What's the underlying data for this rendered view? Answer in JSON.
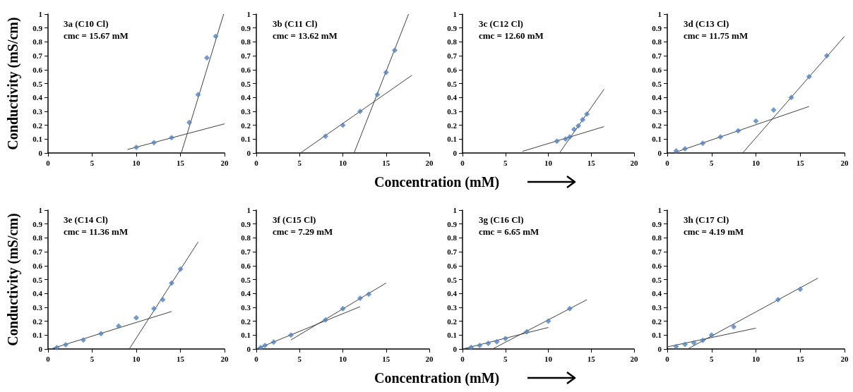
{
  "chart_data": [
    {
      "type": "scatter",
      "title": "3a (C10 Cl)",
      "subtitle": "cmc = 15.67 mM",
      "ylabel": "Conductivity (mS/cm)",
      "xlim": [
        0,
        20
      ],
      "xticks": [
        0,
        5,
        10,
        15,
        20
      ],
      "ylim": [
        0,
        1
      ],
      "yticks": [
        0,
        0.1,
        0.2,
        0.3,
        0.4,
        0.5,
        0.6,
        0.7,
        0.8,
        0.9,
        1
      ],
      "grid": false,
      "marker": "diamond",
      "series": [
        {
          "color": "#4f81bd",
          "x": [
            10,
            12,
            14,
            16,
            17,
            18,
            19
          ],
          "values": [
            0.04,
            0.075,
            0.11,
            0.22,
            0.42,
            0.685,
            0.84
          ]
        },
        {
          "type": "line",
          "marker": "none",
          "color": "#404040",
          "x": [
            9,
            20
          ],
          "values": [
            0.025,
            0.21
          ]
        },
        {
          "type": "line",
          "marker": "none",
          "color": "#404040",
          "x": [
            15.1,
            19.9
          ],
          "values": [
            0,
            1
          ]
        }
      ]
    },
    {
      "type": "scatter",
      "title": "3b (C11 Cl)",
      "subtitle": "cmc = 13.62 mM",
      "xlabel": "Concentration (mM)",
      "xlim": [
        0,
        20
      ],
      "xticks": [
        0,
        5,
        10,
        15,
        20
      ],
      "ylim": [
        0,
        1
      ],
      "yticks": [
        0,
        0.1,
        0.2,
        0.3,
        0.4,
        0.5,
        0.6,
        0.7,
        0.8,
        0.9,
        1
      ],
      "grid": false,
      "marker": "diamond",
      "series": [
        {
          "color": "#4f81bd",
          "x": [
            8,
            10,
            12,
            14,
            15,
            16
          ],
          "values": [
            0.12,
            0.2,
            0.3,
            0.42,
            0.58,
            0.74
          ]
        },
        {
          "type": "line",
          "marker": "none",
          "color": "#404040",
          "x": [
            5.1,
            18
          ],
          "values": [
            0,
            0.56
          ]
        },
        {
          "type": "line",
          "marker": "none",
          "color": "#404040",
          "x": [
            11.3,
            17.6
          ],
          "values": [
            0,
            1
          ]
        }
      ]
    },
    {
      "type": "scatter",
      "title": "3c (C12 Cl)",
      "subtitle": "cmc = 12.60 mM",
      "xlim": [
        0,
        20
      ],
      "xticks": [
        0,
        5,
        10,
        15,
        20
      ],
      "ylim": [
        0,
        1
      ],
      "yticks": [
        0,
        0.1,
        0.2,
        0.3,
        0.4,
        0.5,
        0.6,
        0.7,
        0.8,
        0.9,
        1
      ],
      "grid": false,
      "marker": "diamond",
      "series": [
        {
          "color": "#4f81bd",
          "x": [
            11,
            12,
            12.5,
            13,
            13.5,
            14,
            14.5
          ],
          "values": [
            0.085,
            0.1,
            0.115,
            0.17,
            0.195,
            0.24,
            0.28
          ]
        },
        {
          "type": "line",
          "marker": "none",
          "color": "#404040",
          "x": [
            7,
            16.5
          ],
          "values": [
            0.012,
            0.19
          ]
        },
        {
          "type": "line",
          "marker": "none",
          "color": "#404040",
          "x": [
            11.3,
            16.5
          ],
          "values": [
            0,
            0.46
          ]
        }
      ]
    },
    {
      "type": "scatter",
      "title": "3d (C13 Cl)",
      "subtitle": "cmc = 11.75 mM",
      "xlim": [
        0,
        20
      ],
      "xticks": [
        0,
        5,
        10,
        15,
        20
      ],
      "ylim": [
        0,
        1
      ],
      "yticks": [
        0,
        0.1,
        0.2,
        0.3,
        0.4,
        0.5,
        0.6,
        0.7,
        0.8,
        0.9,
        1
      ],
      "grid": false,
      "marker": "diamond",
      "series": [
        {
          "color": "#4f81bd",
          "x": [
            1,
            2,
            4,
            6,
            8,
            10,
            12,
            14,
            16,
            18
          ],
          "values": [
            0.015,
            0.03,
            0.07,
            0.115,
            0.16,
            0.23,
            0.31,
            0.4,
            0.55,
            0.7
          ]
        },
        {
          "type": "line",
          "marker": "none",
          "color": "#404040",
          "x": [
            0.7,
            16
          ],
          "values": [
            0,
            0.335
          ]
        },
        {
          "type": "line",
          "marker": "none",
          "color": "#404040",
          "x": [
            8.5,
            20
          ],
          "values": [
            0,
            0.84
          ]
        }
      ]
    },
    {
      "type": "scatter",
      "title": "3e (C14 Cl)",
      "subtitle": "cmc = 11.36 mM",
      "ylabel": "Conductivity (mS/cm)",
      "xlim": [
        0,
        20
      ],
      "xticks": [
        0,
        5,
        10,
        15,
        20
      ],
      "ylim": [
        0,
        1
      ],
      "yticks": [
        0,
        0.1,
        0.2,
        0.3,
        0.4,
        0.5,
        0.6,
        0.7,
        0.8,
        0.9,
        1
      ],
      "grid": false,
      "marker": "diamond",
      "series": [
        {
          "color": "#4f81bd",
          "x": [
            1,
            2,
            4,
            6,
            8,
            10,
            12,
            13,
            14,
            15
          ],
          "values": [
            0.01,
            0.03,
            0.065,
            0.11,
            0.165,
            0.225,
            0.29,
            0.355,
            0.475,
            0.575
          ]
        },
        {
          "type": "line",
          "marker": "none",
          "color": "#404040",
          "x": [
            0.3,
            14
          ],
          "values": [
            0,
            0.27
          ]
        },
        {
          "type": "line",
          "marker": "none",
          "color": "#404040",
          "x": [
            9.2,
            17
          ],
          "values": [
            0,
            0.77
          ]
        }
      ]
    },
    {
      "type": "scatter",
      "title": "3f (C15 Cl)",
      "subtitle": "cmc = 7.29 mM",
      "xlabel": "Concentration (mM)",
      "xlim": [
        0,
        20
      ],
      "xticks": [
        0,
        5,
        10,
        15,
        20
      ],
      "ylim": [
        0,
        1
      ],
      "yticks": [
        0,
        0.1,
        0.2,
        0.3,
        0.4,
        0.5,
        0.6,
        0.7,
        0.8,
        0.9,
        1
      ],
      "grid": false,
      "marker": "diamond",
      "series": [
        {
          "color": "#4f81bd",
          "x": [
            0.5,
            1,
            2,
            4,
            8,
            10,
            12,
            13
          ],
          "values": [
            0.01,
            0.025,
            0.05,
            0.1,
            0.21,
            0.29,
            0.365,
            0.395
          ]
        },
        {
          "type": "line",
          "marker": "none",
          "color": "#404040",
          "x": [
            0,
            12
          ],
          "values": [
            0,
            0.305
          ]
        },
        {
          "type": "line",
          "marker": "none",
          "color": "#404040",
          "x": [
            4,
            15
          ],
          "values": [
            0.065,
            0.475
          ]
        }
      ]
    },
    {
      "type": "scatter",
      "title": "3g (C16 Cl)",
      "subtitle": "cmc = 6.65 mM",
      "xlim": [
        0,
        20
      ],
      "xticks": [
        0,
        5,
        10,
        15,
        20
      ],
      "ylim": [
        0,
        1
      ],
      "yticks": [
        0,
        0.1,
        0.2,
        0.3,
        0.4,
        0.5,
        0.6,
        0.7,
        0.8,
        0.9,
        1
      ],
      "grid": false,
      "marker": "diamond",
      "series": [
        {
          "color": "#4f81bd",
          "x": [
            1,
            2,
            3,
            4,
            5,
            7.5,
            10,
            12.5
          ],
          "values": [
            0.012,
            0.025,
            0.04,
            0.052,
            0.075,
            0.125,
            0.2,
            0.29
          ]
        },
        {
          "type": "line",
          "marker": "none",
          "color": "#404040",
          "x": [
            0,
            10
          ],
          "values": [
            0,
            0.155
          ]
        },
        {
          "type": "line",
          "marker": "none",
          "color": "#404040",
          "x": [
            3.5,
            14.5
          ],
          "values": [
            0,
            0.355
          ]
        }
      ]
    },
    {
      "type": "scatter",
      "title": "3h (C17 Cl)",
      "subtitle": "cmc = 4.19 mM",
      "xlim": [
        0,
        20
      ],
      "xticks": [
        0,
        5,
        10,
        15,
        20
      ],
      "ylim": [
        0,
        1
      ],
      "yticks": [
        0,
        0.1,
        0.2,
        0.3,
        0.4,
        0.5,
        0.6,
        0.7,
        0.8,
        0.9,
        1
      ],
      "grid": false,
      "marker": "diamond",
      "series": [
        {
          "color": "#4f81bd",
          "x": [
            1,
            2,
            3,
            4,
            5,
            7.5,
            12.5,
            15
          ],
          "values": [
            0.018,
            0.033,
            0.045,
            0.062,
            0.1,
            0.16,
            0.355,
            0.43
          ]
        },
        {
          "type": "line",
          "marker": "none",
          "color": "#404040",
          "x": [
            0,
            10
          ],
          "values": [
            0.015,
            0.15
          ]
        },
        {
          "type": "line",
          "marker": "none",
          "color": "#404040",
          "x": [
            2.3,
            17
          ],
          "values": [
            0,
            0.51
          ]
        }
      ]
    }
  ]
}
